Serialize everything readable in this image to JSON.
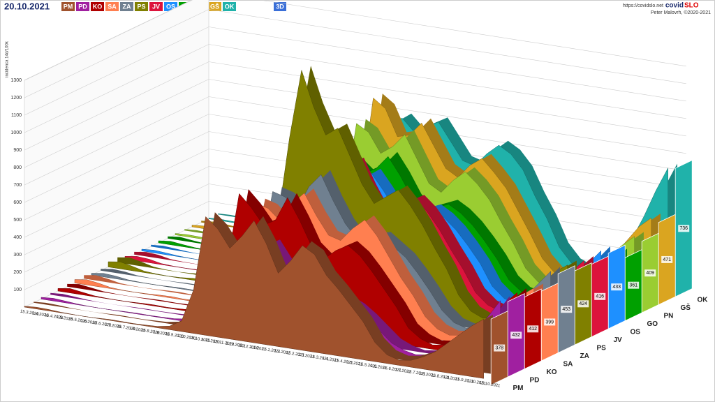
{
  "header": {
    "date": "20.10.2021",
    "button": "3D",
    "url": "https://covidslo.net",
    "brand_a": "covid",
    "brand_b": "SLO",
    "author": "Peter Malovrh, ©2020-2021"
  },
  "chart_data": {
    "type": "area3d",
    "y_label": "incidenca 14d/100k",
    "categories": [
      "15.3.2020",
      "1.4.2020",
      "15.4.2020",
      "1.5.2020",
      "15.5.2020",
      "1.6.2020",
      "15.6.2020",
      "1.7.2020",
      "15.7.2020",
      "1.8.2020",
      "15.8.2020",
      "1.9.2020",
      "15.9.2020",
      "1.10.2020",
      "15.10.2020",
      "1.11.2020",
      "15.11.2020",
      "1.12.2020",
      "15.12.2020",
      "1.1.2021",
      "15.1.2021",
      "1.2.2021",
      "15.2.2021",
      "1.3.2021",
      "15.3.2021",
      "1.4.2021",
      "15.4.2021",
      "1.5.2021",
      "15.5.2021",
      "1.6.2021",
      "15.6.2021",
      "1.7.2021",
      "15.7.2021",
      "1.8.2021",
      "15.8.2021",
      "1.9.2021",
      "15.9.2021",
      "1.10.2021",
      "15.10.2021"
    ],
    "ylim": [
      0,
      1300
    ],
    "yticks": [
      100,
      200,
      300,
      400,
      500,
      600,
      700,
      800,
      900,
      1000,
      1100,
      1200,
      1300
    ],
    "grid": true,
    "series": [
      {
        "name": "PM",
        "color": "#a0522d",
        "current": 378,
        "values": [
          5,
          10,
          8,
          3,
          1,
          0,
          2,
          5,
          4,
          3,
          5,
          8,
          20,
          60,
          250,
          680,
          620,
          520,
          600,
          700,
          580,
          420,
          500,
          600,
          560,
          450,
          380,
          300,
          220,
          110,
          50,
          30,
          40,
          70,
          110,
          170,
          230,
          290,
          340
        ]
      },
      {
        "name": "PD",
        "color": "#a020a0",
        "current": 432,
        "values": [
          10,
          15,
          10,
          4,
          1,
          0,
          1,
          3,
          4,
          3,
          4,
          6,
          15,
          40,
          150,
          420,
          450,
          400,
          480,
          520,
          420,
          330,
          300,
          320,
          300,
          260,
          230,
          180,
          120,
          60,
          30,
          15,
          25,
          50,
          90,
          150,
          220,
          300,
          400
        ]
      },
      {
        "name": "KO",
        "color": "#b00000",
        "current": 412,
        "values": [
          15,
          25,
          15,
          5,
          2,
          1,
          2,
          5,
          6,
          4,
          6,
          10,
          30,
          90,
          300,
          720,
          650,
          560,
          600,
          740,
          620,
          480,
          420,
          480,
          520,
          470,
          390,
          300,
          210,
          100,
          50,
          25,
          35,
          70,
          120,
          180,
          250,
          330,
          400
        ]
      },
      {
        "name": "SA",
        "color": "#ff7f50",
        "current": 399,
        "values": [
          20,
          30,
          20,
          6,
          2,
          1,
          3,
          6,
          8,
          5,
          7,
          12,
          25,
          70,
          280,
          620,
          600,
          540,
          650,
          720,
          600,
          500,
          480,
          560,
          620,
          540,
          430,
          320,
          230,
          120,
          60,
          35,
          45,
          80,
          130,
          190,
          260,
          330,
          380
        ]
      },
      {
        "name": "ZA",
        "color": "#708090",
        "current": 453,
        "values": [
          10,
          20,
          15,
          5,
          2,
          1,
          2,
          5,
          5,
          4,
          6,
          10,
          20,
          60,
          260,
          640,
          620,
          560,
          700,
          780,
          640,
          520,
          440,
          460,
          480,
          430,
          380,
          300,
          210,
          110,
          50,
          30,
          40,
          75,
          120,
          190,
          270,
          350,
          430
        ]
      },
      {
        "name": "PS",
        "color": "#808000",
        "current": 424,
        "values": [
          30,
          40,
          25,
          8,
          3,
          1,
          4,
          10,
          12,
          8,
          10,
          15,
          40,
          120,
          400,
          900,
          1300,
          1100,
          950,
          1000,
          850,
          700,
          600,
          650,
          700,
          620,
          520,
          400,
          290,
          150,
          70,
          40,
          55,
          90,
          150,
          220,
          300,
          370,
          420
        ]
      },
      {
        "name": "JV",
        "color": "#dc143c",
        "current": 416,
        "values": [
          15,
          25,
          20,
          6,
          2,
          1,
          3,
          6,
          7,
          5,
          6,
          10,
          30,
          80,
          300,
          700,
          720,
          650,
          700,
          760,
          620,
          500,
          480,
          560,
          600,
          540,
          450,
          340,
          240,
          120,
          60,
          35,
          45,
          80,
          130,
          190,
          260,
          330,
          400
        ]
      },
      {
        "name": "OS",
        "color": "#1e90ff",
        "current": 433,
        "values": [
          10,
          15,
          10,
          4,
          1,
          0,
          2,
          4,
          5,
          4,
          5,
          8,
          20,
          60,
          220,
          560,
          580,
          520,
          600,
          650,
          560,
          460,
          420,
          470,
          500,
          460,
          400,
          320,
          230,
          110,
          50,
          30,
          40,
          70,
          120,
          180,
          250,
          330,
          410
        ]
      },
      {
        "name": "GO",
        "color": "#00a000",
        "current": 361,
        "values": [
          12,
          20,
          12,
          5,
          2,
          1,
          2,
          5,
          6,
          4,
          6,
          10,
          25,
          70,
          260,
          620,
          640,
          580,
          620,
          700,
          600,
          480,
          420,
          450,
          480,
          440,
          380,
          300,
          210,
          100,
          45,
          25,
          35,
          60,
          100,
          160,
          220,
          290,
          350
        ]
      },
      {
        "name": "PN",
        "color": "#9acd32",
        "current": 409,
        "values": [
          8,
          12,
          10,
          4,
          1,
          0,
          2,
          4,
          5,
          3,
          5,
          8,
          25,
          90,
          350,
          800,
          760,
          650,
          700,
          780,
          650,
          520,
          480,
          560,
          620,
          560,
          480,
          360,
          250,
          120,
          55,
          30,
          40,
          70,
          120,
          190,
          270,
          340,
          400
        ]
      },
      {
        "name": "GŠ",
        "color": "#daa520",
        "current": 471,
        "values": [
          10,
          15,
          12,
          5,
          2,
          1,
          2,
          4,
          5,
          4,
          6,
          10,
          30,
          100,
          380,
          900,
          850,
          700,
          720,
          800,
          680,
          560,
          520,
          600,
          650,
          580,
          500,
          380,
          260,
          130,
          60,
          35,
          45,
          80,
          140,
          220,
          310,
          400,
          460
        ]
      },
      {
        "name": "OK",
        "color": "#20b2aa",
        "current": 736,
        "values": [
          5,
          8,
          6,
          3,
          1,
          0,
          1,
          3,
          4,
          3,
          5,
          8,
          20,
          70,
          300,
          700,
          750,
          680,
          720,
          760,
          660,
          560,
          540,
          620,
          680,
          640,
          560,
          420,
          300,
          150,
          70,
          40,
          50,
          90,
          160,
          260,
          400,
          560,
          700
        ]
      }
    ]
  }
}
